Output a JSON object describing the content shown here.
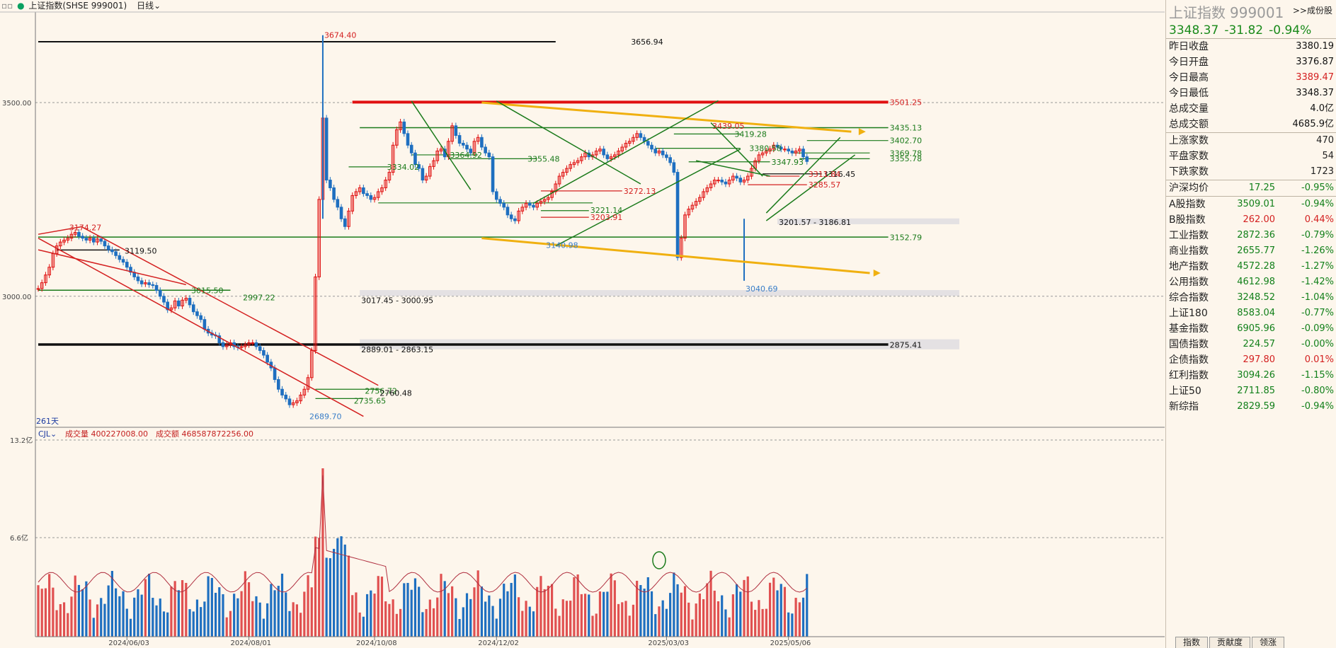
{
  "header": {
    "menu_glyph": "▫▫",
    "title": "上证指数(SHSE 999001)",
    "period": "日线"
  },
  "chart_data": {
    "type": "candlestick",
    "x_ticks": [
      "2024/06/03",
      "2024/08/01",
      "2024/10/08",
      "2024/12/02",
      "2025/03/03",
      "2025/05/06"
    ],
    "y_ticks": [
      "3500.00",
      "3000.00"
    ],
    "days_label": "261天",
    "candles": [
      3020,
      3035,
      3055,
      3075,
      3110,
      3130,
      3140,
      3145,
      3150,
      3160,
      3165,
      3155,
      3150,
      3145,
      3150,
      3140,
      3148,
      3142,
      3130,
      3120,
      3115,
      3105,
      3095,
      3088,
      3075,
      3062,
      3050,
      3040,
      3032,
      3035,
      3030,
      3028,
      3015,
      3000,
      2985,
      2965,
      2970,
      2988,
      2975,
      2990,
      2995,
      2978,
      2960,
      2950,
      2940,
      2915,
      2905,
      2900,
      2898,
      2880,
      2870,
      2875,
      2880,
      2870,
      2868,
      2870,
      2875,
      2880,
      2880,
      2870,
      2860,
      2848,
      2830,
      2815,
      2785,
      2760,
      2745,
      2735,
      2720,
      2725,
      2730,
      2745,
      2760,
      2790,
      2860,
      3050,
      3250,
      3460,
      3300,
      3280,
      3250,
      3230,
      3200,
      3180,
      3220,
      3260,
      3270,
      3280,
      3265,
      3260,
      3250,
      3255,
      3270,
      3280,
      3300,
      3320,
      3390,
      3430,
      3450,
      3420,
      3390,
      3370,
      3340,
      3330,
      3300,
      3310,
      3335,
      3350,
      3375,
      3380,
      3360,
      3400,
      3440,
      3415,
      3395,
      3390,
      3380,
      3370,
      3400,
      3410,
      3385,
      3370,
      3360,
      3270,
      3250,
      3240,
      3230,
      3210,
      3200,
      3195,
      3220,
      3230,
      3240,
      3235,
      3230,
      3240,
      3245,
      3250,
      3255,
      3270,
      3290,
      3310,
      3320,
      3330,
      3340,
      3345,
      3350,
      3360,
      3370,
      3360,
      3365,
      3375,
      3380,
      3365,
      3355,
      3360,
      3365,
      3375,
      3385,
      3395,
      3400,
      3410,
      3420,
      3410,
      3400,
      3390,
      3380,
      3370,
      3375,
      3365,
      3358,
      3345,
      3320,
      3100,
      3150,
      3210,
      3225,
      3235,
      3245,
      3255,
      3270,
      3280,
      3290,
      3300,
      3300,
      3295,
      3290,
      3300,
      3310,
      3305,
      3295,
      3300,
      3310,
      3330,
      3350,
      3365,
      3370,
      3375,
      3380,
      3390,
      3385,
      3380,
      3380,
      3375,
      3370,
      3375,
      3380,
      3360,
      3348
    ],
    "volume": {
      "label": "CJL",
      "vol_label": "成交量 400227008.00",
      "amt_label": "成交额 468587872256.00",
      "y_ticks": [
        "13.2亿",
        "6.6亿"
      ]
    },
    "annotations": [
      {
        "text": "3674.40",
        "price": 3674.4,
        "day": 77,
        "color": "#d42020"
      },
      {
        "text": "3656.94",
        "price": 3656.94,
        "day": 160,
        "color": "#111"
      },
      {
        "text": "3501.25",
        "price": 3501.25,
        "day": 230,
        "color": "#d42020"
      },
      {
        "text": "3435.13",
        "price": 3435.13,
        "day": 230,
        "color": "#1a7a1a"
      },
      {
        "text": "3402.70",
        "price": 3402.7,
        "day": 230,
        "color": "#1a7a1a"
      },
      {
        "text": "3369.78",
        "price": 3369.78,
        "day": 230,
        "color": "#1a7a1a"
      },
      {
        "text": "3355.78",
        "price": 3355.78,
        "day": 230,
        "color": "#1a7a1a"
      },
      {
        "text": "3439.05",
        "price": 3440,
        "day": 182,
        "color": "#d42020"
      },
      {
        "text": "3419.28",
        "price": 3419,
        "day": 188,
        "color": "#1a7a1a"
      },
      {
        "text": "3380.58",
        "price": 3382,
        "day": 192,
        "color": "#1a7a1a"
      },
      {
        "text": "3347.93",
        "price": 3347,
        "day": 198,
        "color": "#1a7a1a"
      },
      {
        "text": "3355.48",
        "price": 3355,
        "day": 132,
        "color": "#1a7a1a"
      },
      {
        "text": "3334.02",
        "price": 3334,
        "day": 94,
        "color": "#1a7a1a"
      },
      {
        "text": "3364.92",
        "price": 3365,
        "day": 111,
        "color": "#1a7a1a"
      },
      {
        "text": "3316.45",
        "price": 3316,
        "day": 212,
        "color": "#111"
      },
      {
        "text": "3311.84",
        "price": 3316,
        "day": 208,
        "color": "#d42020"
      },
      {
        "text": "3285.57",
        "price": 3288,
        "day": 208,
        "color": "#d42020"
      },
      {
        "text": "3272.13",
        "price": 3272,
        "day": 158,
        "color": "#d42020"
      },
      {
        "text": "3221.14",
        "price": 3222,
        "day": 149,
        "color": "#1a7a1a"
      },
      {
        "text": "3203.91",
        "price": 3204,
        "day": 149,
        "color": "#d42020"
      },
      {
        "text": "3140.98",
        "price": 3132,
        "day": 137,
        "color": "#3a7ec8"
      },
      {
        "text": "3201.57 - 3186.81",
        "price": 3191,
        "day": 200,
        "color": "#111"
      },
      {
        "text": "3152.79",
        "price": 3152,
        "day": 230,
        "color": "#1a7a1a"
      },
      {
        "text": "3174.27",
        "price": 3178,
        "day": 8,
        "color": "#d42020"
      },
      {
        "text": "3119.50",
        "price": 3117,
        "day": 23,
        "color": "#111"
      },
      {
        "text": "3015.50",
        "price": 3015,
        "day": 41,
        "color": "#1a7a1a"
      },
      {
        "text": "2997.22",
        "price": 2997,
        "day": 55,
        "color": "#1a7a1a"
      },
      {
        "text": "3040.69",
        "price": 3020,
        "day": 191,
        "color": "#3a7ec8"
      },
      {
        "text": "3017.45 - 3000.95",
        "price": 2990,
        "day": 87,
        "color": "#111"
      },
      {
        "text": "2875.41",
        "price": 2875,
        "day": 230,
        "color": "#111"
      },
      {
        "text": "2889.01 - 2863.15",
        "price": 2863,
        "day": 87,
        "color": "#111"
      },
      {
        "text": "2756.72",
        "price": 2756,
        "day": 88,
        "color": "#1a7a1a"
      },
      {
        "text": "2760.48",
        "price": 2750,
        "day": 92,
        "color": "#111"
      },
      {
        "text": "2735.65",
        "price": 2730,
        "day": 85,
        "color": "#1a7a1a"
      },
      {
        "text": "2689.70",
        "price": 2690,
        "day": 73,
        "color": "#3a7ec8"
      }
    ]
  },
  "quote": {
    "name": "上证指数",
    "code": "999001",
    "link": ">>成份股",
    "price": "3348.37",
    "change": "-31.82",
    "change_pct": "-0.94%",
    "rows": [
      {
        "label": "昨日收盘",
        "value": "3380.19",
        "color": "#111"
      },
      {
        "label": "今日开盘",
        "value": "3376.87",
        "color": "#111"
      },
      {
        "label": "今日最高",
        "value": "3389.47",
        "color": "#d42020"
      },
      {
        "label": "今日最低",
        "value": "3348.37",
        "color": "#111"
      },
      {
        "label": "总成交量",
        "value": "4.0亿",
        "color": "#111"
      },
      {
        "label": "总成交额",
        "value": "4685.9亿",
        "color": "#111"
      }
    ],
    "breadth": [
      {
        "label": "上涨家数",
        "value": "470"
      },
      {
        "label": "平盘家数",
        "value": "54"
      },
      {
        "label": "下跌家数",
        "value": "1723"
      }
    ],
    "avg": {
      "label": "沪深均价",
      "value": "17.25",
      "pct": "-0.95%"
    },
    "indices": [
      {
        "name": "A股指数",
        "value": "3509.01",
        "pct": "-0.94%",
        "up": false
      },
      {
        "name": "B股指数",
        "value": "262.00",
        "pct": "0.44%",
        "up": true
      },
      {
        "name": "工业指数",
        "value": "2872.36",
        "pct": "-0.79%",
        "up": false
      },
      {
        "name": "商业指数",
        "value": "2655.77",
        "pct": "-1.26%",
        "up": false
      },
      {
        "name": "地产指数",
        "value": "4572.28",
        "pct": "-1.27%",
        "up": false
      },
      {
        "name": "公用指数",
        "value": "4612.98",
        "pct": "-1.42%",
        "up": false
      },
      {
        "name": "综合指数",
        "value": "3248.52",
        "pct": "-1.04%",
        "up": false
      },
      {
        "name": "上证180",
        "value": "8583.04",
        "pct": "-0.77%",
        "up": false
      },
      {
        "name": "基金指数",
        "value": "6905.96",
        "pct": "-0.09%",
        "up": false
      },
      {
        "name": "国债指数",
        "value": "224.57",
        "pct": "-0.00%",
        "up": false
      },
      {
        "name": "企债指数",
        "value": "297.80",
        "pct": "0.01%",
        "up": true
      },
      {
        "name": "红利指数",
        "value": "3094.26",
        "pct": "-1.15%",
        "up": false
      },
      {
        "name": "上证50",
        "value": "2711.85",
        "pct": "-0.80%",
        "up": false
      },
      {
        "name": "新综指",
        "value": "2829.59",
        "pct": "-0.94%",
        "up": false
      }
    ],
    "tabs": [
      "指数",
      "贡献度",
      "领涨"
    ]
  }
}
